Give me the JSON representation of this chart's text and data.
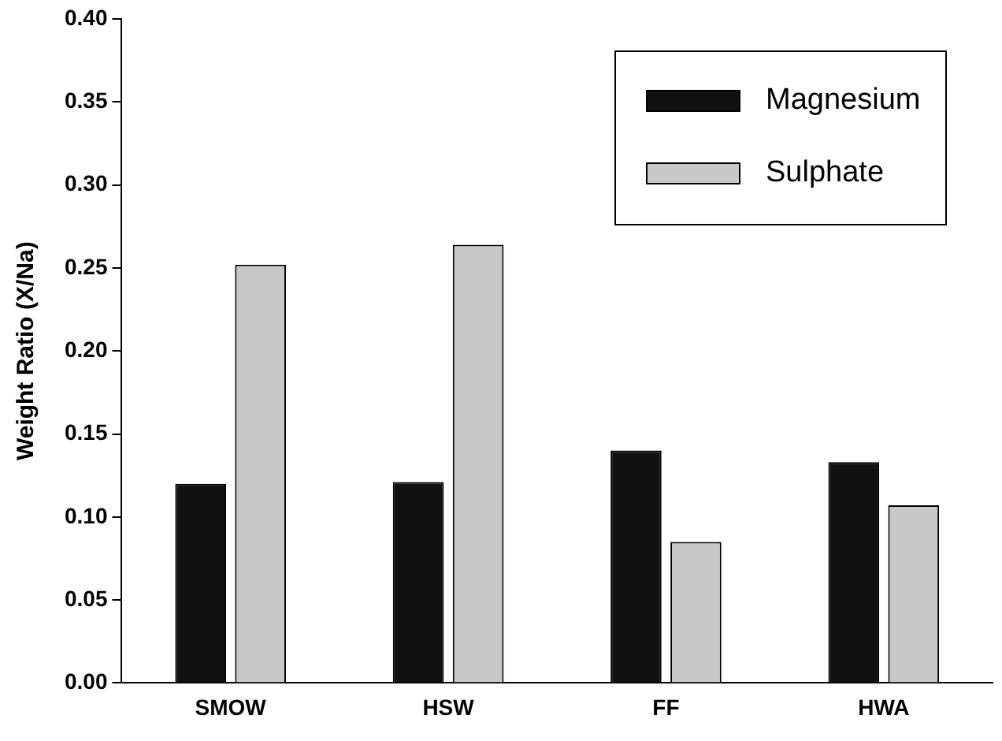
{
  "chart_data": {
    "type": "bar",
    "ylabel": "Weight Ratio (X/Na)",
    "categories": [
      "SMOW",
      "HSW",
      "FF",
      "HWA"
    ],
    "series": [
      {
        "name": "Magnesium",
        "color": "#111111",
        "values": [
          0.12,
          0.121,
          0.14,
          0.133
        ]
      },
      {
        "name": "Sulphate",
        "color": "#c8c8c8",
        "values": [
          0.252,
          0.264,
          0.085,
          0.107
        ]
      }
    ],
    "ylim": [
      0,
      0.4
    ],
    "yticks": [
      {
        "value": 0,
        "label": "0.00"
      },
      {
        "value": 0.05,
        "label": "0.05"
      },
      {
        "value": 0.1,
        "label": "0.10"
      },
      {
        "value": 0.15,
        "label": "0.15"
      },
      {
        "value": 0.2,
        "label": "0.20"
      },
      {
        "value": 0.25,
        "label": "0.25"
      },
      {
        "value": 0.3,
        "label": "0.30"
      },
      {
        "value": 0.35,
        "label": "0.35"
      },
      {
        "value": 0.4,
        "label": "0.40"
      }
    ],
    "grid": false,
    "legend": "top right"
  }
}
